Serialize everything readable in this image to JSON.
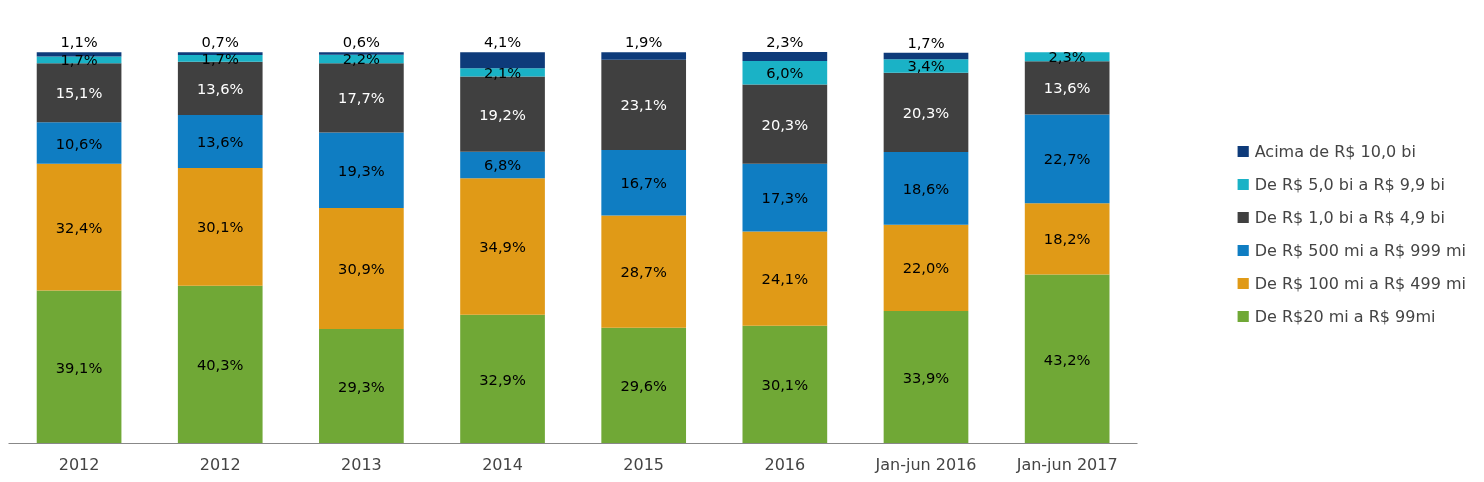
{
  "chart_data": {
    "type": "bar",
    "stacked": true,
    "categories": [
      "2012",
      "2012",
      "2013",
      "2014",
      "2015",
      "2016",
      "Jan-jun 2016",
      "Jan-jun 2017"
    ],
    "series": [
      {
        "name": "De R$20 mi a R$ 99mi",
        "color": "#70a836",
        "values": [
          39.1,
          40.3,
          29.3,
          32.9,
          29.6,
          30.1,
          33.9,
          43.2
        ],
        "value_labels": [
          "39,1%",
          "40,3%",
          "29,3%",
          "32,9%",
          "29,6%",
          "30,1%",
          "33,9%",
          "43,2%"
        ]
      },
      {
        "name": "De R$ 100 mi a R$ 499 mi",
        "color": "#e09a17",
        "values": [
          32.4,
          30.1,
          30.9,
          34.9,
          28.7,
          24.1,
          22.0,
          18.2
        ],
        "value_labels": [
          "32,4%",
          "30,1%",
          "30,9%",
          "34,9%",
          "28,7%",
          "24,1%",
          "22,0%",
          "18,2%"
        ]
      },
      {
        "name": "De R$ 500 mi a R$ 999 mi",
        "color": "#0f7dc2",
        "values": [
          10.6,
          13.6,
          19.3,
          6.8,
          16.7,
          17.3,
          18.6,
          22.7
        ],
        "value_labels": [
          "10,6%",
          "13,6%",
          "19,3%",
          "6,8%",
          "16,7%",
          "17,3%",
          "18,6%",
          "22,7%"
        ]
      },
      {
        "name": "De R$ 1,0 bi a R$ 4,9 bi",
        "color": "#404040",
        "values": [
          15.1,
          13.6,
          17.7,
          19.2,
          23.1,
          20.3,
          20.3,
          13.6
        ],
        "value_labels": [
          "15,1%",
          "13,6%",
          "17,7%",
          "19,2%",
          "23,1%",
          "20,3%",
          "20,3%",
          "13,6%"
        ]
      },
      {
        "name": "De R$ 5,0 bi a R$ 9,9 bi",
        "color": "#1ab2c6",
        "values": [
          1.7,
          1.7,
          2.2,
          2.1,
          null,
          6.0,
          3.4,
          2.3
        ],
        "value_labels": [
          "1,7%",
          "1,7%",
          "2,2%",
          "2,1%",
          null,
          "6,0%",
          "3,4%",
          "2,3%"
        ]
      },
      {
        "name": "Acima de R$ 10,0 bi",
        "color": "#0e3b7a",
        "values": [
          1.1,
          0.7,
          0.6,
          4.1,
          1.9,
          2.3,
          1.7,
          null
        ],
        "value_labels": [
          "1,1%",
          "0,7%",
          "0,6%",
          "4,1%",
          "1,9%",
          "2,3%",
          "1,7%",
          null
        ]
      }
    ],
    "tick_labels": "x",
    "grid": false,
    "legend": "right"
  }
}
